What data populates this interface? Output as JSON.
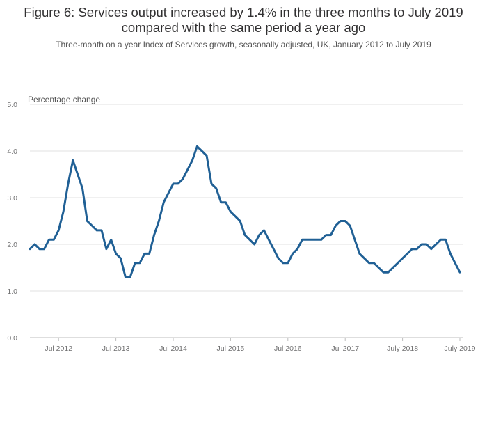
{
  "chart_data": {
    "type": "line",
    "title": "Figure 6: Services output increased by 1.4% in the three months to July 2019 compared with the same period a year ago",
    "subtitle": "Three-month on a year Index of Services growth, seasonally adjusted, UK, January 2012 to July 2019",
    "ylabel": "Percentage change",
    "xlabel": "",
    "ylim": [
      0,
      5
    ],
    "y_ticks": [
      "0.0",
      "1.0",
      "2.0",
      "3.0",
      "4.0",
      "5.0"
    ],
    "y_tick_values": [
      0,
      1,
      2,
      3,
      4,
      5
    ],
    "x_ticks": [
      {
        "label": "Jul 2012",
        "index": 6
      },
      {
        "label": "Jul 2013",
        "index": 18
      },
      {
        "label": "Jul 2014",
        "index": 30
      },
      {
        "label": "Jul 2015",
        "index": 42
      },
      {
        "label": "Jul 2016",
        "index": 54
      },
      {
        "label": "Jul 2017",
        "index": 66
      },
      {
        "label": "July 2018",
        "index": 78
      },
      {
        "label": "July 2019",
        "index": 90
      }
    ],
    "grid": true,
    "series": [
      {
        "name": "Three-month on a year Index of Services growth",
        "color": "#206095",
        "x_start": "Jan 2012",
        "x_end": "Jul 2019",
        "values": [
          1.9,
          2.0,
          1.9,
          1.9,
          2.1,
          2.1,
          2.3,
          2.7,
          3.3,
          3.8,
          3.5,
          3.2,
          2.5,
          2.4,
          2.3,
          2.3,
          1.9,
          2.1,
          1.8,
          1.7,
          1.3,
          1.3,
          1.6,
          1.6,
          1.8,
          1.8,
          2.2,
          2.5,
          2.9,
          3.1,
          3.3,
          3.3,
          3.4,
          3.6,
          3.8,
          4.1,
          4.0,
          3.9,
          3.3,
          3.2,
          2.9,
          2.9,
          2.7,
          2.6,
          2.5,
          2.2,
          2.1,
          2.0,
          2.2,
          2.3,
          2.1,
          1.9,
          1.7,
          1.6,
          1.6,
          1.8,
          1.9,
          2.1,
          2.1,
          2.1,
          2.1,
          2.1,
          2.2,
          2.2,
          2.4,
          2.5,
          2.5,
          2.4,
          2.1,
          1.8,
          1.7,
          1.6,
          1.6,
          1.5,
          1.4,
          1.4,
          1.5,
          1.6,
          1.7,
          1.8,
          1.9,
          1.9,
          2.0,
          2.0,
          1.9,
          2.0,
          2.1,
          2.1,
          1.8,
          1.6,
          1.4
        ]
      }
    ]
  }
}
